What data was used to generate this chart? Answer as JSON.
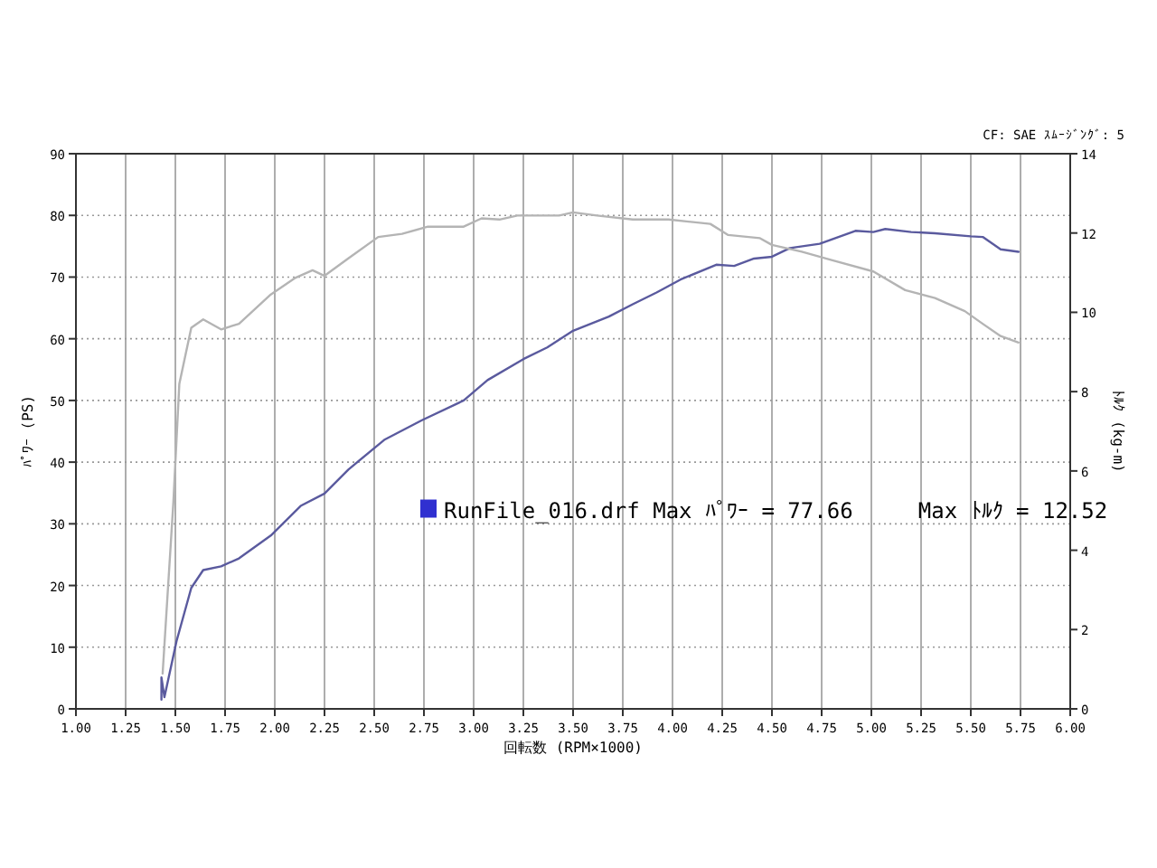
{
  "chart_data": {
    "type": "line",
    "subtitle": "CF: SAE  ｽﾑｰｼﾞﾝｸﾞ: 5",
    "xlabel": "回転数 (RPM×1000)",
    "ylabel": "ﾊﾟﾜｰ (PS)",
    "y2label": "ﾄﾙｸ (kg-m)",
    "annotations": [
      "RunFile_016.drf Max ﾊﾟﾜｰ = 77.66     Max ﾄﾙｸ = 12.52"
    ],
    "xlim": [
      1,
      6
    ],
    "xticks": [
      {
        "value": 1,
        "label": "1.00"
      },
      {
        "value": 1.25,
        "label": "1.25"
      },
      {
        "value": 1.5,
        "label": "1.50"
      },
      {
        "value": 1.75,
        "label": "1.75"
      },
      {
        "value": 2,
        "label": "2.00"
      },
      {
        "value": 2.25,
        "label": "2.25"
      },
      {
        "value": 2.5,
        "label": "2.50"
      },
      {
        "value": 2.75,
        "label": "2.75"
      },
      {
        "value": 3,
        "label": "3.00"
      },
      {
        "value": 3.25,
        "label": "3.25"
      },
      {
        "value": 3.5,
        "label": "3.50"
      },
      {
        "value": 3.75,
        "label": "3.75"
      },
      {
        "value": 4,
        "label": "4.00"
      },
      {
        "value": 4.25,
        "label": "4.25"
      },
      {
        "value": 4.5,
        "label": "4.50"
      },
      {
        "value": 4.75,
        "label": "4.75"
      },
      {
        "value": 5,
        "label": "5.00"
      },
      {
        "value": 5.25,
        "label": "5.25"
      },
      {
        "value": 5.5,
        "label": "5.50"
      },
      {
        "value": 5.75,
        "label": "5.75"
      },
      {
        "value": 6,
        "label": "6.00"
      }
    ],
    "ylim": [
      0,
      90
    ],
    "yticks": [
      0,
      10,
      20,
      30,
      40,
      50,
      60,
      70,
      80,
      90
    ],
    "y2lim": [
      0,
      14
    ],
    "y2ticks": [
      0,
      2,
      4,
      6,
      8,
      10,
      12,
      14
    ],
    "grid": true,
    "series": [
      {
        "color": "#5a5a9e",
        "x": [
          1.43,
          1.43,
          1.445,
          1.506,
          1.58,
          1.64,
          1.73,
          1.82,
          1.98,
          2.13,
          2.25,
          2.37,
          2.55,
          2.74,
          2.95,
          3.07,
          3.25,
          3.37,
          3.5,
          3.68,
          3.8,
          3.92,
          4.04,
          4.22,
          4.31,
          4.41,
          4.5,
          4.59,
          4.74,
          4.92,
          5.01,
          5.07,
          5.2,
          5.32,
          5.5,
          5.56,
          5.65,
          5.74
        ],
        "values": [
          1.5,
          5.1,
          1.9,
          11,
          19.6,
          22.5,
          23.1,
          24.4,
          28.1,
          32.9,
          34.9,
          38.8,
          43.6,
          46.8,
          50,
          53.3,
          56.7,
          58.6,
          61.3,
          63.6,
          65.6,
          67.5,
          69.6,
          72,
          71.8,
          73,
          73.3,
          74.7,
          75.4,
          77.5,
          77.3,
          77.8,
          77.3,
          77.1,
          76.6,
          76.5,
          74.5,
          74.1
        ]
      },
      {
        "color": "#b4b4b4",
        "axis": "y2",
        "x": [
          1.436,
          1.49,
          1.52,
          1.58,
          1.64,
          1.73,
          1.82,
          1.98,
          2.1,
          2.19,
          2.25,
          2.37,
          2.52,
          2.64,
          2.77,
          2.95,
          3.04,
          3.13,
          3.22,
          3.43,
          3.5,
          3.62,
          3.8,
          3.98,
          4.19,
          4.28,
          4.44,
          4.5,
          4.65,
          4.8,
          5.01,
          5.17,
          5.32,
          5.47,
          5.56,
          5.65,
          5.74
        ],
        "values": [
          0.89,
          5.21,
          8.2,
          9.61,
          9.82,
          9.57,
          9.71,
          10.45,
          10.86,
          11.06,
          10.92,
          11.36,
          11.9,
          11.98,
          12.16,
          12.16,
          12.37,
          12.34,
          12.44,
          12.44,
          12.52,
          12.44,
          12.34,
          12.34,
          12.23,
          11.95,
          11.87,
          11.7,
          11.53,
          11.32,
          11.03,
          10.56,
          10.36,
          10.03,
          9.71,
          9.4,
          9.24
        ]
      }
    ]
  }
}
